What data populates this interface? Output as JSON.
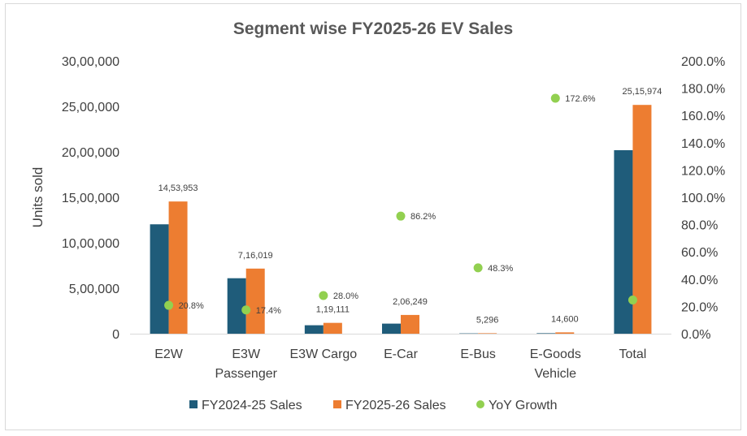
{
  "chart_data": {
    "type": "bar",
    "title": "Segment wise FY2025-26 EV Sales",
    "ylabel": "Units sold",
    "xlabel": "",
    "categories": [
      [
        "E2W"
      ],
      [
        "E3W",
        "Passenger"
      ],
      [
        "E3W Cargo"
      ],
      [
        "E-Car"
      ],
      [
        "E-Bus"
      ],
      [
        "E-Goods",
        "Vehicle"
      ],
      [
        "Total"
      ]
    ],
    "series": [
      {
        "name": "FY2024-25 Sales",
        "type": "bar",
        "axis": "left",
        "color": "#1f5c7a",
        "values": [
          1203000,
          610000,
          93000,
          110800,
          3570,
          5350,
          2018000
        ]
      },
      {
        "name": "FY2025-26 Sales",
        "type": "bar",
        "axis": "left",
        "color": "#ed7d31",
        "values": [
          1453953,
          716019,
          119111,
          206249,
          5296,
          14600,
          2515974
        ],
        "labels": [
          "14,53,953",
          "7,16,019",
          "1,19,111",
          "2,06,249",
          "5,296",
          "14,600",
          "25,15,974"
        ]
      },
      {
        "name": "YoY Growth",
        "type": "scatter",
        "axis": "right",
        "color": "#92d050",
        "values": [
          20.8,
          17.4,
          28.0,
          86.2,
          48.3,
          172.6,
          24.7
        ],
        "labels": [
          "20.8%",
          "17.4%",
          "28.0%",
          "86.2%",
          "48.3%",
          "172.6%",
          ""
        ]
      }
    ],
    "y_left": {
      "min": 0,
      "max": 3000000,
      "step": 500000,
      "tick_labels": [
        "0",
        "5,00,000",
        "10,00,000",
        "15,00,000",
        "20,00,000",
        "25,00,000",
        "30,00,000"
      ]
    },
    "y_right": {
      "min": 0,
      "max": 200,
      "step": 20,
      "tick_labels": [
        "0.0%",
        "20.0%",
        "40.0%",
        "60.0%",
        "80.0%",
        "100.0%",
        "120.0%",
        "140.0%",
        "160.0%",
        "180.0%",
        "200.0%"
      ]
    },
    "grid": false,
    "legend_position": "bottom"
  }
}
